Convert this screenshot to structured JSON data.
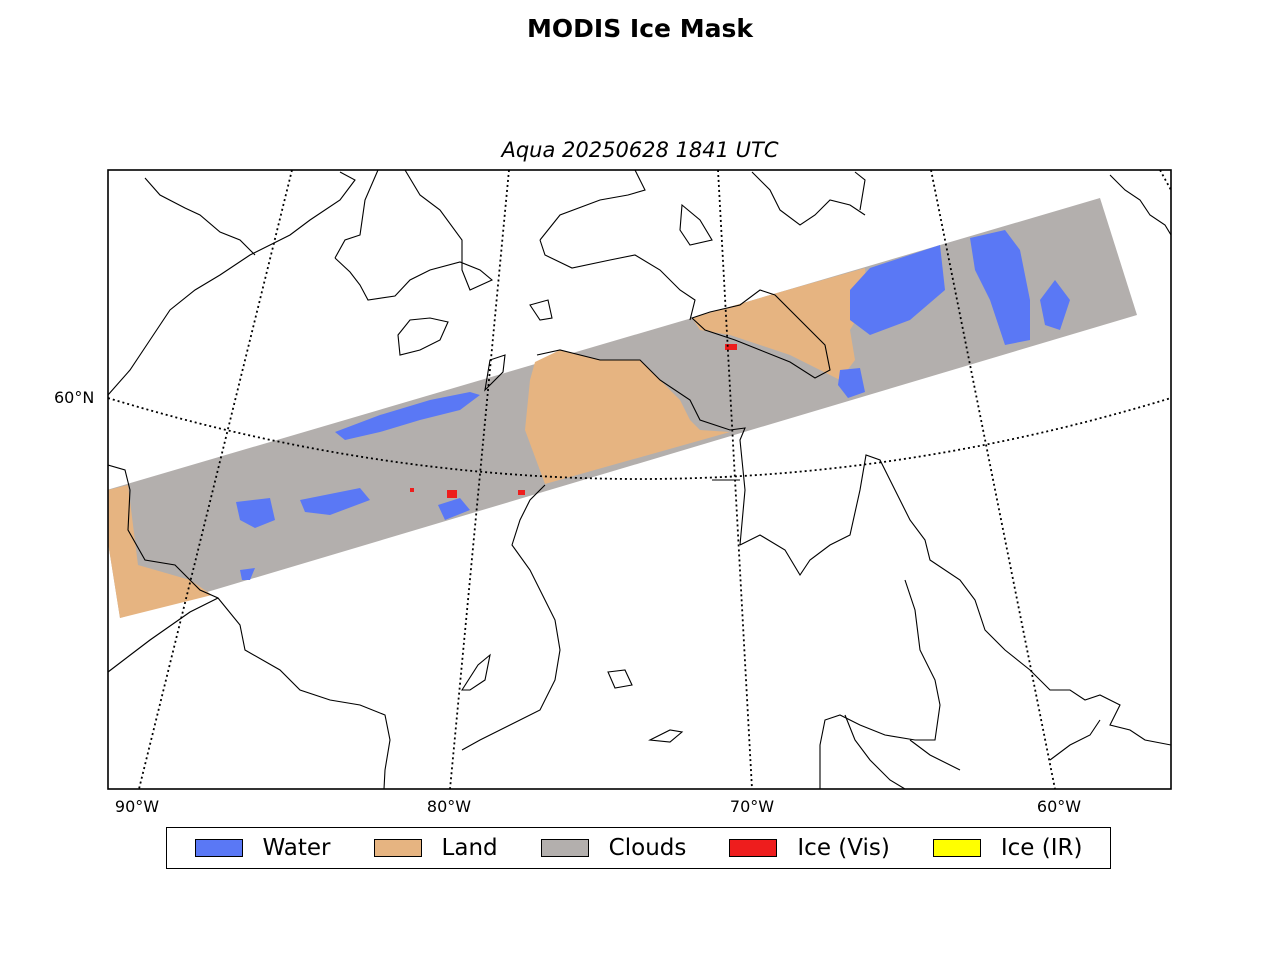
{
  "title": "MODIS Ice Mask",
  "subtitle": "Aqua 20250628 1841 UTC",
  "lat_labels": [
    "60°N"
  ],
  "lon_labels": [
    "90°W",
    "80°W",
    "70°W",
    "60°W"
  ],
  "legend": [
    {
      "label": "Water",
      "color": "#5a78f5"
    },
    {
      "label": "Land",
      "color": "#e6b481"
    },
    {
      "label": "Clouds",
      "color": "#b3afad"
    },
    {
      "label": "Ice (Vis)",
      "color": "#ee1d1d"
    },
    {
      "label": "Ice (IR)",
      "color": "#ffff00"
    }
  ]
}
